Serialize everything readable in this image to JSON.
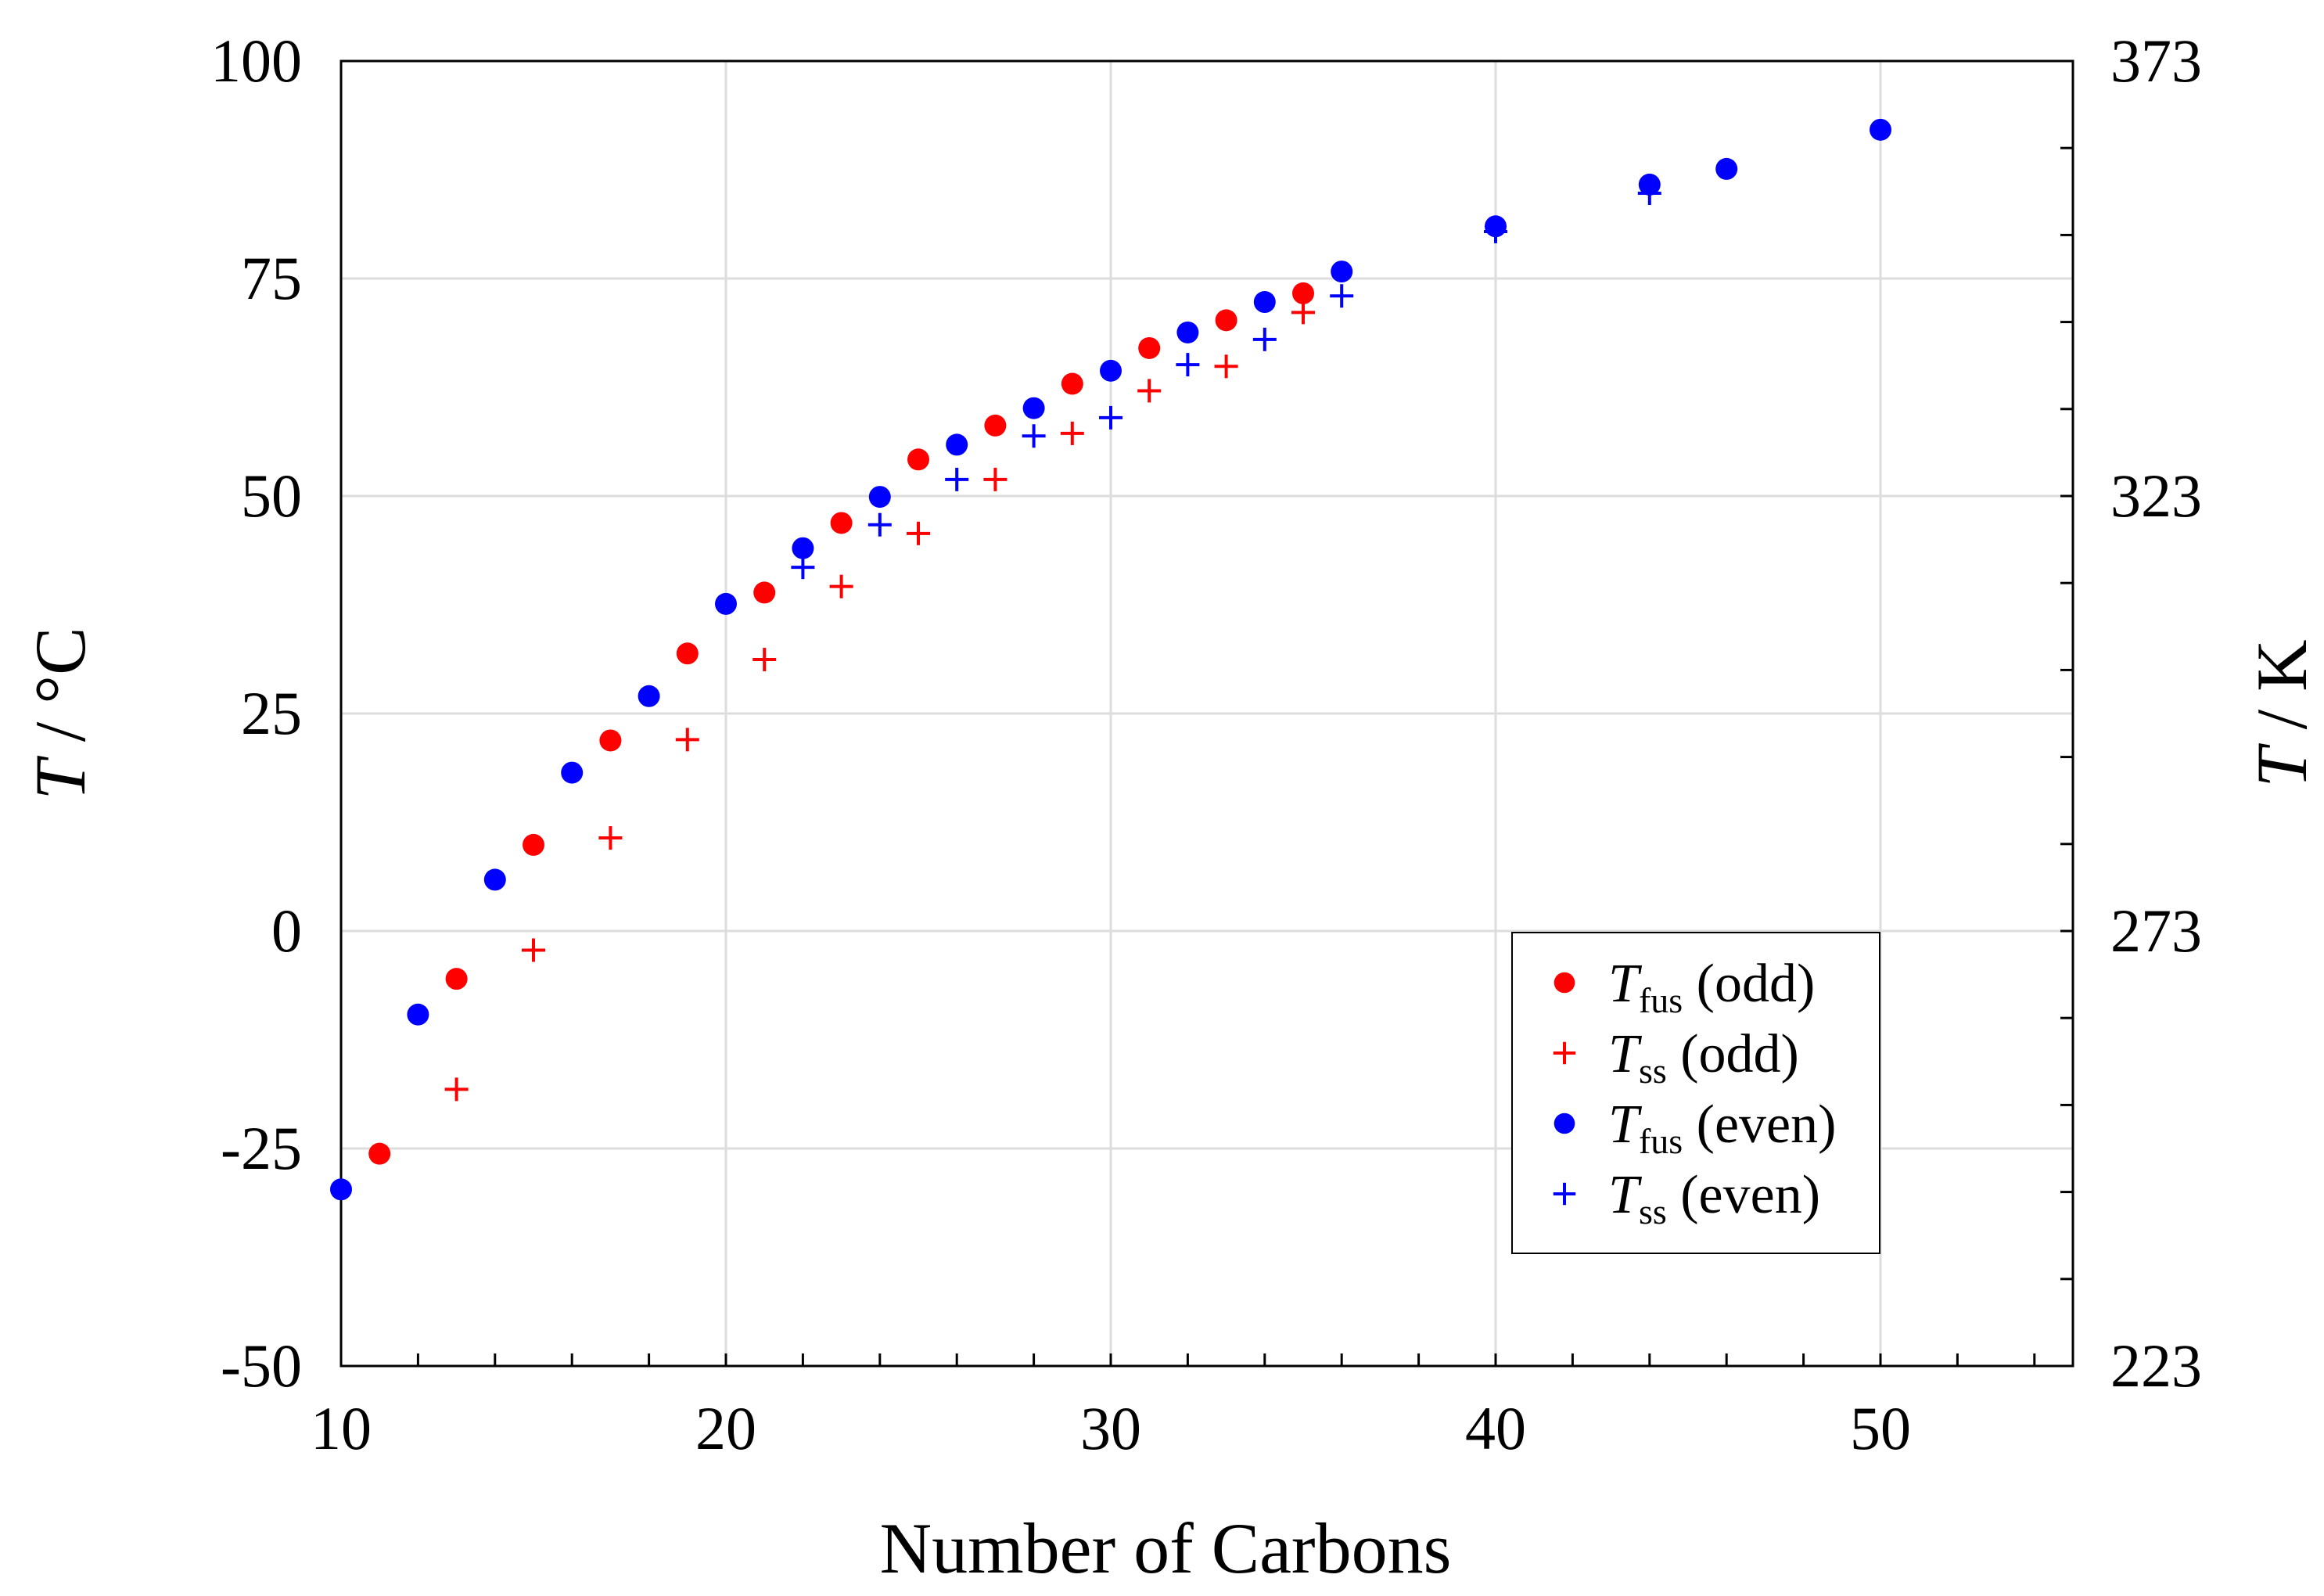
{
  "chart_data": {
    "type": "scatter",
    "title": "",
    "xlabel": "Number of Carbons",
    "ylabel": {
      "symbol": "T",
      "unit": " / °C"
    },
    "y2label": {
      "symbol": "T",
      "unit": " / K"
    },
    "xlim": [
      10,
      55
    ],
    "ylim": [
      -50,
      100
    ],
    "y2lim": [
      223,
      373
    ],
    "x_ticks": [
      10,
      20,
      30,
      40,
      50
    ],
    "x_tick_labels": [
      "10",
      "20",
      "30",
      "40",
      "50"
    ],
    "y_ticks": [
      -50,
      -25,
      0,
      25,
      50,
      75,
      100
    ],
    "y_tick_labels": [
      "-50",
      "-25",
      "0",
      "25",
      "50",
      "75",
      "100"
    ],
    "y2_ticks": [
      223,
      273,
      323,
      373
    ],
    "y2_tick_labels": [
      "223",
      "273",
      "323",
      "373"
    ],
    "grid": true,
    "legend_position": "bottom-right",
    "series": [
      {
        "name": "Tfus (odd)",
        "symbol": "T",
        "subscript": "fus",
        "suffix": " (odd)",
        "marker": "circle",
        "color": "#ff0000",
        "points": [
          [
            11,
            -25.6
          ],
          [
            13,
            -5.5
          ],
          [
            15,
            9.9
          ],
          [
            17,
            21.9
          ],
          [
            19,
            31.9
          ],
          [
            21,
            38.9
          ],
          [
            23,
            46.9
          ],
          [
            25,
            54.2
          ],
          [
            27,
            58.1
          ],
          [
            29,
            62.9
          ],
          [
            31,
            67.0
          ],
          [
            33,
            70.2
          ],
          [
            35,
            73.3
          ]
        ]
      },
      {
        "name": "Tss (odd)",
        "symbol": "T",
        "subscript": "ss",
        "suffix": " (odd)",
        "marker": "plus",
        "color": "#ff0000",
        "points": [
          [
            13,
            -18.2
          ],
          [
            15,
            -2.2
          ],
          [
            17,
            10.7
          ],
          [
            19,
            22.0
          ],
          [
            21,
            31.2
          ],
          [
            23,
            39.6
          ],
          [
            25,
            45.7
          ],
          [
            27,
            51.9
          ],
          [
            29,
            57.2
          ],
          [
            31,
            62.1
          ],
          [
            33,
            64.9
          ],
          [
            35,
            71.1
          ]
        ]
      },
      {
        "name": "Tfus (even)",
        "symbol": "T",
        "subscript": "fus",
        "suffix": " (even)",
        "marker": "circle",
        "color": "#0000ff",
        "points": [
          [
            10,
            -29.7
          ],
          [
            12,
            -9.6
          ],
          [
            14,
            5.9
          ],
          [
            16,
            18.2
          ],
          [
            18,
            27.0
          ],
          [
            20,
            37.6
          ],
          [
            22,
            44.0
          ],
          [
            24,
            49.9
          ],
          [
            26,
            55.9
          ],
          [
            28,
            60.1
          ],
          [
            30,
            64.4
          ],
          [
            32,
            68.8
          ],
          [
            34,
            72.3
          ],
          [
            36,
            75.8
          ],
          [
            40,
            81.0
          ],
          [
            44,
            85.8
          ],
          [
            46,
            87.6
          ],
          [
            50,
            92.1
          ]
        ]
      },
      {
        "name": "Tss (even)",
        "symbol": "T",
        "subscript": "ss",
        "suffix": " (even)",
        "marker": "plus",
        "color": "#0000ff",
        "points": [
          [
            22,
            41.8
          ],
          [
            24,
            46.7
          ],
          [
            26,
            51.9
          ],
          [
            28,
            56.9
          ],
          [
            30,
            59.0
          ],
          [
            32,
            65.1
          ],
          [
            34,
            68.0
          ],
          [
            36,
            73.0
          ],
          [
            40,
            80.4
          ],
          [
            44,
            84.8
          ]
        ]
      }
    ]
  }
}
